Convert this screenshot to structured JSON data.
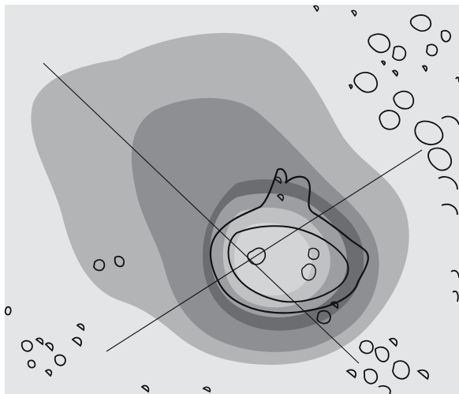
{
  "figure": {
    "description_visible_text": [],
    "colors": {
      "page_background": "#ffffff",
      "map_background": "#e4e5e6",
      "level_1_fill": "#b3b4b6",
      "level_2_fill": "#8d8f92",
      "level_3_fill": "#6b6d70",
      "level_4_fill": "#9c9ea1",
      "level_5_fill": "#bfc1c3",
      "level_6_fill": "#d3d4d6",
      "contour_stroke": "#111111",
      "axis_line_stroke": "#1a1a1a"
    },
    "contour_levels": 6,
    "axis_lines": 2
  }
}
